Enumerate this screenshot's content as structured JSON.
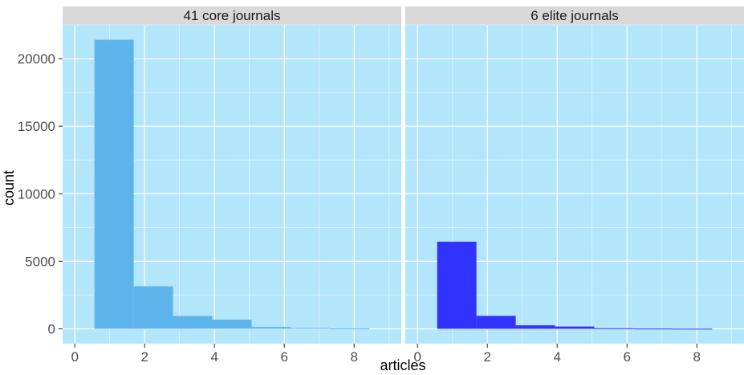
{
  "chart_data": {
    "type": "bar",
    "xlabel": "articles",
    "ylabel": "count",
    "xlim": [
      -0.35,
      9.35
    ],
    "ylim": [
      -1100,
      22500
    ],
    "xticks": [
      0,
      2,
      4,
      6,
      8
    ],
    "yticks": [
      0,
      5000,
      10000,
      15000,
      20000
    ],
    "ytick_labels": [
      "0",
      "5000",
      "10000",
      "15000",
      "20000"
    ],
    "xtick_labels": [
      "0",
      "2",
      "4",
      "6",
      "8"
    ],
    "bin_width": 1.125,
    "grid": true,
    "panel_background": "#b3e6fb",
    "strip_background": "#d9d9d9",
    "facets": [
      {
        "label": "41 core journals",
        "color": "#5db4eb",
        "bins": [
          {
            "x0": 0.5625,
            "x1": 1.6875,
            "count": 21400
          },
          {
            "x0": 1.6875,
            "x1": 2.8125,
            "count": 3150
          },
          {
            "x0": 2.8125,
            "x1": 3.9375,
            "count": 950
          },
          {
            "x0": 3.9375,
            "x1": 5.0625,
            "count": 680
          },
          {
            "x0": 5.0625,
            "x1": 6.1875,
            "count": 140
          },
          {
            "x0": 6.1875,
            "x1": 7.3125,
            "count": 60
          },
          {
            "x0": 7.3125,
            "x1": 8.4375,
            "count": 25
          }
        ]
      },
      {
        "label": "6 elite journals",
        "color": "#3333ff",
        "bins": [
          {
            "x0": 0.5625,
            "x1": 1.6875,
            "count": 6450
          },
          {
            "x0": 1.6875,
            "x1": 2.8125,
            "count": 960
          },
          {
            "x0": 2.8125,
            "x1": 3.9375,
            "count": 260
          },
          {
            "x0": 3.9375,
            "x1": 5.0625,
            "count": 170
          },
          {
            "x0": 5.0625,
            "x1": 6.1875,
            "count": 40
          },
          {
            "x0": 6.1875,
            "x1": 7.3125,
            "count": 20
          },
          {
            "x0": 7.3125,
            "x1": 8.4375,
            "count": 10
          }
        ]
      }
    ]
  }
}
